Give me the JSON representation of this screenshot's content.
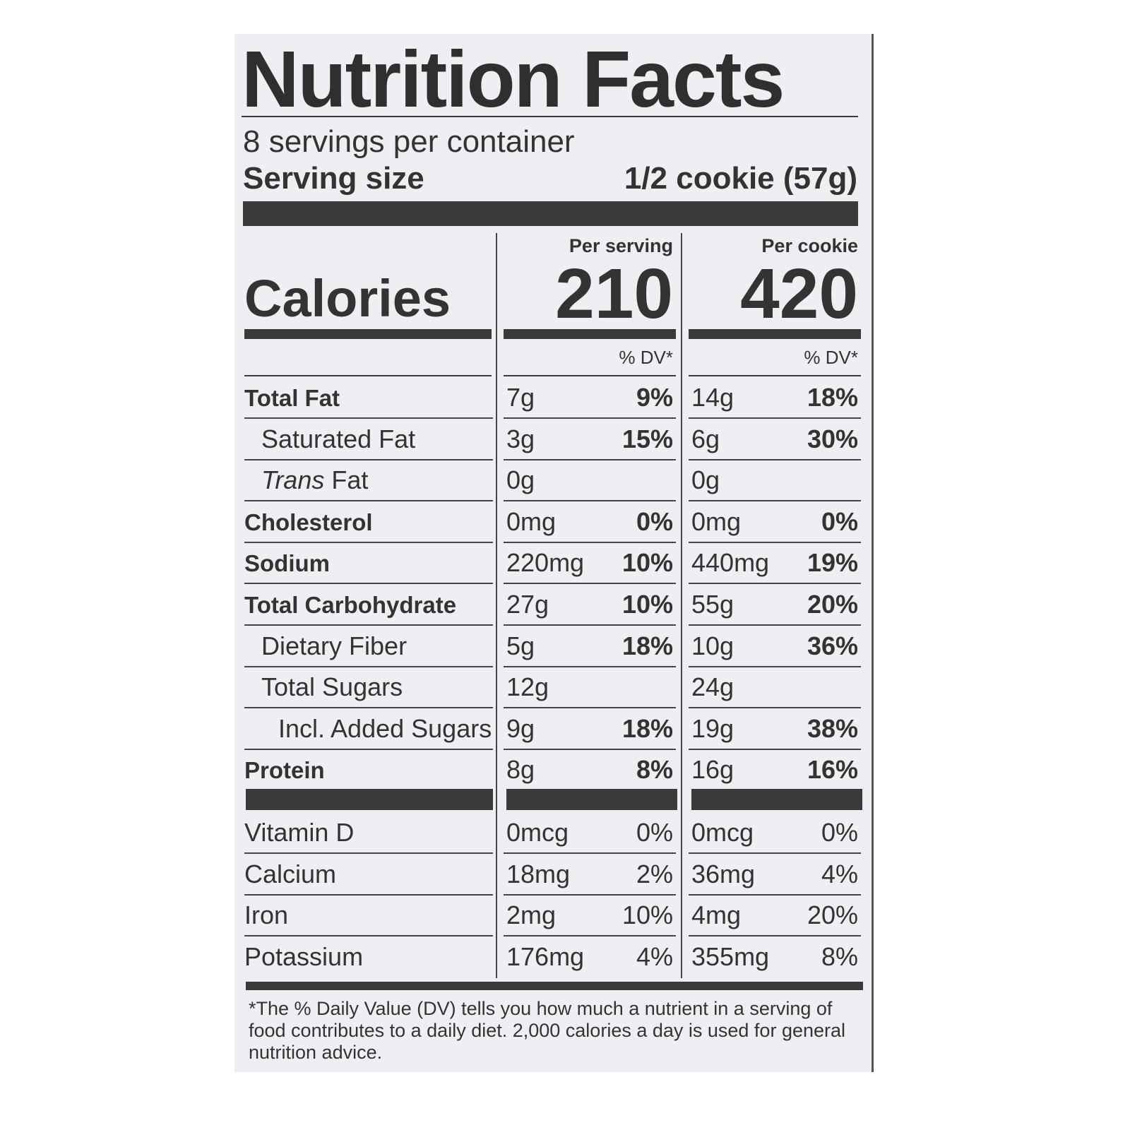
{
  "title": "Nutrition Facts",
  "servings_per_container": "8 servings per container",
  "serving_size": {
    "label": "Serving size",
    "value": "1/2 cookie (57g)"
  },
  "columns": [
    {
      "header": "Per serving",
      "calories": "210",
      "dv_header": "% DV*"
    },
    {
      "header": "Per cookie",
      "calories": "420",
      "dv_header": "% DV*"
    }
  ],
  "calories_label": "Calories",
  "nutrients": [
    {
      "name": "Total Fat",
      "bold": true,
      "indent": 0,
      "per_serving": "7g",
      "per_serving_dv": "9%",
      "per_cookie": "14g",
      "per_cookie_dv": "18%"
    },
    {
      "name": "Saturated Fat",
      "bold": false,
      "indent": 1,
      "per_serving": "3g",
      "per_serving_dv": "15%",
      "per_cookie": "6g",
      "per_cookie_dv": "30%"
    },
    {
      "name": "Trans Fat",
      "bold": false,
      "indent": 1,
      "italic_prefix": "Trans",
      "per_serving": "0g",
      "per_serving_dv": "",
      "per_cookie": "0g",
      "per_cookie_dv": ""
    },
    {
      "name": "Cholesterol",
      "bold": true,
      "indent": 0,
      "per_serving": "0mg",
      "per_serving_dv": "0%",
      "per_cookie": "0mg",
      "per_cookie_dv": "0%"
    },
    {
      "name": "Sodium",
      "bold": true,
      "indent": 0,
      "per_serving": "220mg",
      "per_serving_dv": "10%",
      "per_cookie": "440mg",
      "per_cookie_dv": "19%"
    },
    {
      "name": "Total Carbohydrate",
      "bold": true,
      "indent": 0,
      "per_serving": "27g",
      "per_serving_dv": "10%",
      "per_cookie": "55g",
      "per_cookie_dv": "20%"
    },
    {
      "name": "Dietary Fiber",
      "bold": false,
      "indent": 1,
      "per_serving": "5g",
      "per_serving_dv": "18%",
      "per_cookie": "10g",
      "per_cookie_dv": "36%"
    },
    {
      "name": "Total Sugars",
      "bold": false,
      "indent": 1,
      "per_serving": "12g",
      "per_serving_dv": "",
      "per_cookie": "24g",
      "per_cookie_dv": ""
    },
    {
      "name": "Incl. Added Sugars",
      "bold": false,
      "indent": 2,
      "per_serving": "9g",
      "per_serving_dv": "18%",
      "per_cookie": "19g",
      "per_cookie_dv": "38%"
    },
    {
      "name": "Protein",
      "bold": true,
      "indent": 0,
      "per_serving": "8g",
      "per_serving_dv": "8%",
      "per_cookie": "16g",
      "per_cookie_dv": "16%"
    }
  ],
  "vitamins": [
    {
      "name": "Vitamin D",
      "per_serving": "0mcg",
      "per_serving_dv": "0%",
      "per_cookie": "0mcg",
      "per_cookie_dv": "0%"
    },
    {
      "name": "Calcium",
      "per_serving": "18mg",
      "per_serving_dv": "2%",
      "per_cookie": "36mg",
      "per_cookie_dv": "4%"
    },
    {
      "name": "Iron",
      "per_serving": "2mg",
      "per_serving_dv": "10%",
      "per_cookie": "4mg",
      "per_cookie_dv": "20%"
    },
    {
      "name": "Potassium",
      "per_serving": "176mg",
      "per_serving_dv": "4%",
      "per_cookie": "355mg",
      "per_cookie_dv": "8%"
    }
  ],
  "footnote": "*The % Daily Value (DV) tells you how much a nutrient in a serving of food contributes to a daily diet. 2,000 calories a day is used for general nutrition advice."
}
